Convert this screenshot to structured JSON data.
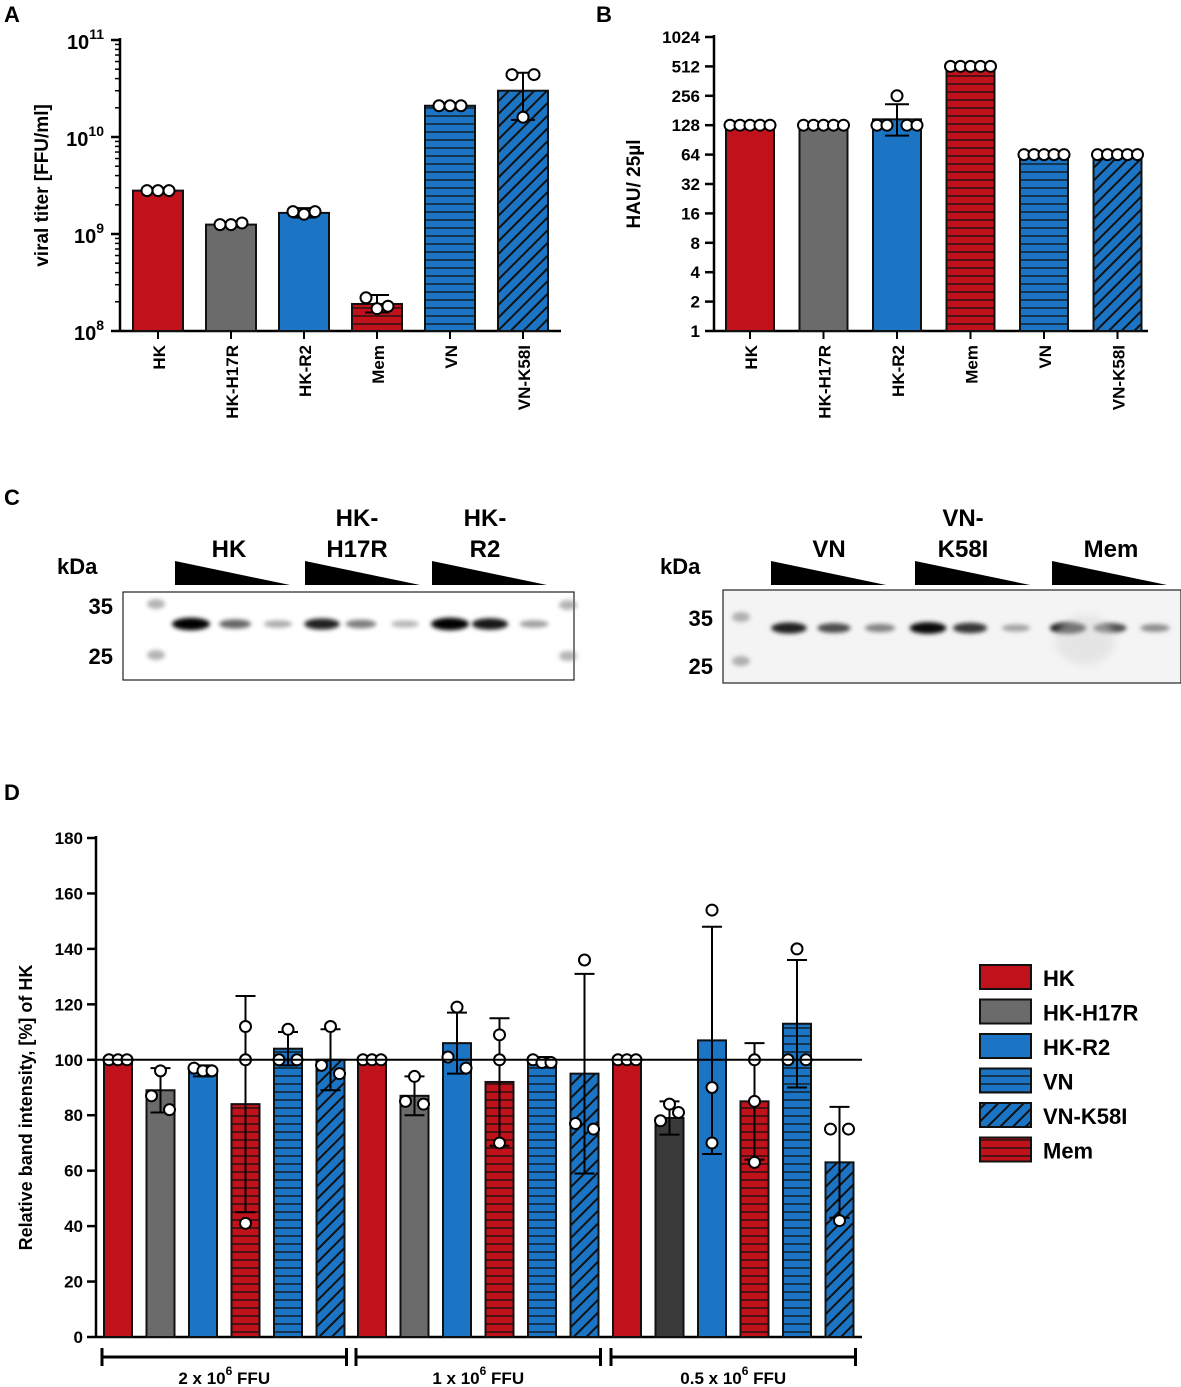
{
  "colors": {
    "red": "#c1121c",
    "gray": "#6b6b6b",
    "dark": "#3a3a3a",
    "blue": "#1b74c4",
    "edge": "#111111"
  },
  "panel_labels": {
    "a": "A",
    "b": "B",
    "c": "C",
    "d": "D"
  },
  "chart_data": [
    {
      "id": "A",
      "type": "bar",
      "scale": "log10",
      "ylabel": "viral titer [FFU/ml]",
      "ylim": [
        100000000,
        100000000000
      ],
      "ytick_values": [
        100000000,
        1000000000,
        10000000000,
        100000000000
      ],
      "ytick_base": "10",
      "ytick_exponents": [
        "8",
        "9",
        "10",
        "11"
      ],
      "categories": [
        "HK",
        "HK-H17R",
        "HK-R2",
        "Mem",
        "VN",
        "VN-K58I"
      ],
      "fills": [
        "red",
        "gray",
        "blue",
        "red-hstripe",
        "blue-hstripe",
        "blue-diag"
      ],
      "values": [
        2800000000,
        1250000000,
        1650000000,
        190000000,
        21000000000,
        30000000000
      ],
      "err_low": [
        2700000000,
        1180000000,
        1480000000,
        155000000,
        20000000000,
        15000000000
      ],
      "err_high": [
        2900000000,
        1320000000,
        1850000000,
        235000000,
        22000000000,
        46000000000
      ],
      "points": [
        [
          2800000000,
          2800000000,
          2800000000
        ],
        [
          1250000000,
          1250000000,
          1300000000
        ],
        [
          1700000000,
          1600000000,
          1700000000
        ],
        [
          220000000,
          170000000,
          180000000
        ],
        [
          21000000000,
          21000000000,
          21000000000
        ],
        [
          44000000000,
          16000000000,
          44000000000
        ]
      ]
    },
    {
      "id": "B",
      "type": "bar",
      "scale": "log2",
      "ylabel": "HAU/ 25µl",
      "ylim": [
        1,
        1024
      ],
      "ytick_values": [
        1,
        2,
        4,
        8,
        16,
        32,
        64,
        128,
        256,
        512,
        1024
      ],
      "ytick_labels": [
        "1",
        "2",
        "4",
        "8",
        "16",
        "32",
        "64",
        "128",
        "256",
        "512",
        "1024"
      ],
      "categories": [
        "HK",
        "HK-H17R",
        "HK-R2",
        "Mem",
        "VN",
        "VN-K58I"
      ],
      "fills": [
        "red",
        "gray",
        "blue",
        "red-hstripe",
        "blue-hstripe",
        "blue-diag"
      ],
      "values": [
        128,
        128,
        147,
        512,
        64,
        64
      ],
      "err_low": [
        128,
        128,
        100,
        512,
        64,
        64
      ],
      "err_high": [
        128,
        128,
        210,
        512,
        64,
        64
      ],
      "points": [
        [
          128,
          128,
          128,
          128,
          128
        ],
        [
          128,
          128,
          128,
          128,
          128
        ],
        [
          128,
          128,
          256,
          128,
          128
        ],
        [
          512,
          512,
          512,
          512,
          512
        ],
        [
          64,
          64,
          64,
          64,
          64
        ],
        [
          64,
          64,
          64,
          64,
          64
        ]
      ]
    },
    {
      "id": "D",
      "type": "bar",
      "ylabel": "Relative band intensity, [%] of HK",
      "ylim": [
        0,
        180
      ],
      "yticks": [
        0,
        20,
        40,
        60,
        80,
        100,
        120,
        140,
        160,
        180
      ],
      "reference_line": 100,
      "groups": [
        {
          "prefix": "2 x 10",
          "exp": "6",
          "suffix": " FFU"
        },
        {
          "prefix": "1 x 10",
          "exp": "6",
          "suffix": " FFU"
        },
        {
          "prefix": "0.5 x 10",
          "exp": "6",
          "suffix": " FFU"
        }
      ],
      "series": [
        {
          "name": "HK",
          "fill": "red",
          "values": [
            100,
            100,
            100
          ],
          "err": [
            0,
            0,
            0
          ],
          "points": [
            [
              100,
              100,
              100
            ],
            [
              100,
              100,
              100
            ],
            [
              100,
              100,
              100
            ]
          ]
        },
        {
          "name": "HK-H17R",
          "fill": "gray",
          "values": [
            89,
            87,
            79
          ],
          "err": [
            8,
            7,
            6
          ],
          "points": [
            [
              96,
              87,
              82
            ],
            [
              94,
              85,
              84
            ],
            [
              84,
              78,
              81
            ]
          ]
        },
        {
          "name": "HK-R2",
          "fill": "blue",
          "values": [
            96,
            106,
            107
          ],
          "err": [
            2,
            11,
            41
          ],
          "points": [
            [
              97,
              96,
              96
            ],
            [
              119,
              101,
              97
            ],
            [
              154,
              90,
              70
            ]
          ]
        },
        {
          "name": "Mem",
          "fill": "red-hstripe",
          "values": [
            84,
            92,
            85
          ],
          "err": [
            39,
            23,
            21
          ],
          "points": [
            [
              112,
              100,
              41
            ],
            [
              109,
              100,
              70
            ],
            [
              100,
              85,
              63
            ]
          ]
        },
        {
          "name": "VN",
          "fill": "blue-hstripe",
          "values": [
            104,
            100,
            113
          ],
          "err": [
            6,
            1,
            23
          ],
          "points": [
            [
              111,
              100,
              100
            ],
            [
              100,
              99,
              99
            ],
            [
              140,
              100,
              100
            ]
          ]
        },
        {
          "name": "VN-K58I",
          "fill": "blue-diag",
          "values": [
            100,
            95,
            63
          ],
          "err": [
            11,
            36,
            20
          ],
          "points": [
            [
              112,
              98,
              95
            ],
            [
              136,
              77,
              75
            ],
            [
              75,
              75,
              42
            ]
          ]
        }
      ],
      "legend_order": [
        "HK",
        "HK-H17R",
        "HK-R2",
        "VN",
        "VN-K58I",
        "Mem"
      ],
      "legend_fills": [
        "red",
        "gray",
        "blue",
        "blue-hstripe",
        "blue-diag",
        "red-hstripe"
      ]
    }
  ],
  "western_blot": {
    "unit_label": "kDa",
    "left_lane_groups": [
      "HK",
      "HK-\nH17R",
      "HK-\nR2"
    ],
    "right_lane_groups": [
      "VN",
      "VN-\nK58I",
      "Mem"
    ],
    "left_markers": [
      "35",
      "25"
    ],
    "right_markers": [
      "35",
      "25"
    ],
    "left_band_intensity": [
      1.0,
      0.5,
      0.2,
      0.8,
      0.4,
      0.15,
      1.0,
      0.85,
      0.25
    ],
    "right_band_intensity": [
      0.8,
      0.6,
      0.35,
      0.9,
      0.7,
      0.2,
      0.85,
      0.6,
      0.3
    ]
  }
}
